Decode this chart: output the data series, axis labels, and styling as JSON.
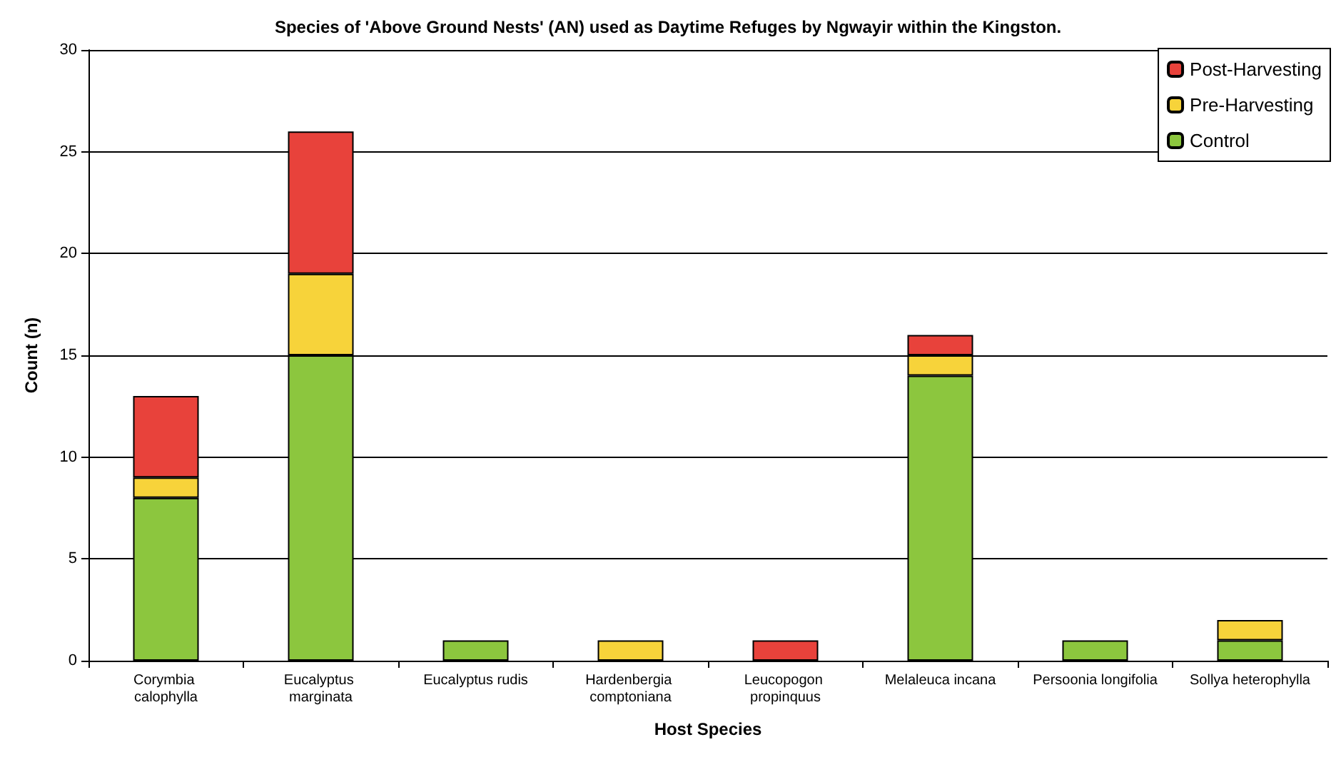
{
  "chart_data": {
    "type": "bar",
    "stacked": true,
    "title": "Species of 'Above Ground Nests' (AN) used as Daytime Refuges by Ngwayir within the Kingston.",
    "xlabel": "Host Species",
    "ylabel": "Count (n)",
    "categories": [
      "Corymbia calophylla",
      "Eucalyptus marginata",
      "Eucalyptus rudis",
      "Hardenbergia comptoniana",
      "Leucopogon propinquus",
      "Melaleuca incana",
      "Persoonia longifolia",
      "Sollya heterophylla"
    ],
    "series": [
      {
        "name": "Control",
        "color": "#8cc63e",
        "values": [
          8,
          15,
          1,
          0,
          0,
          14,
          1,
          1
        ]
      },
      {
        "name": "Pre-Harvesting",
        "color": "#f7d33a",
        "values": [
          1,
          4,
          0,
          1,
          0,
          1,
          0,
          1
        ]
      },
      {
        "name": "Post-Harvesting",
        "color": "#e8423b",
        "values": [
          4,
          7,
          0,
          0,
          1,
          1,
          0,
          0
        ]
      }
    ],
    "ylim": [
      0,
      30
    ],
    "yticks": [
      0,
      5,
      10,
      15,
      20,
      25,
      30
    ],
    "grid": "y",
    "legend": "top right"
  }
}
